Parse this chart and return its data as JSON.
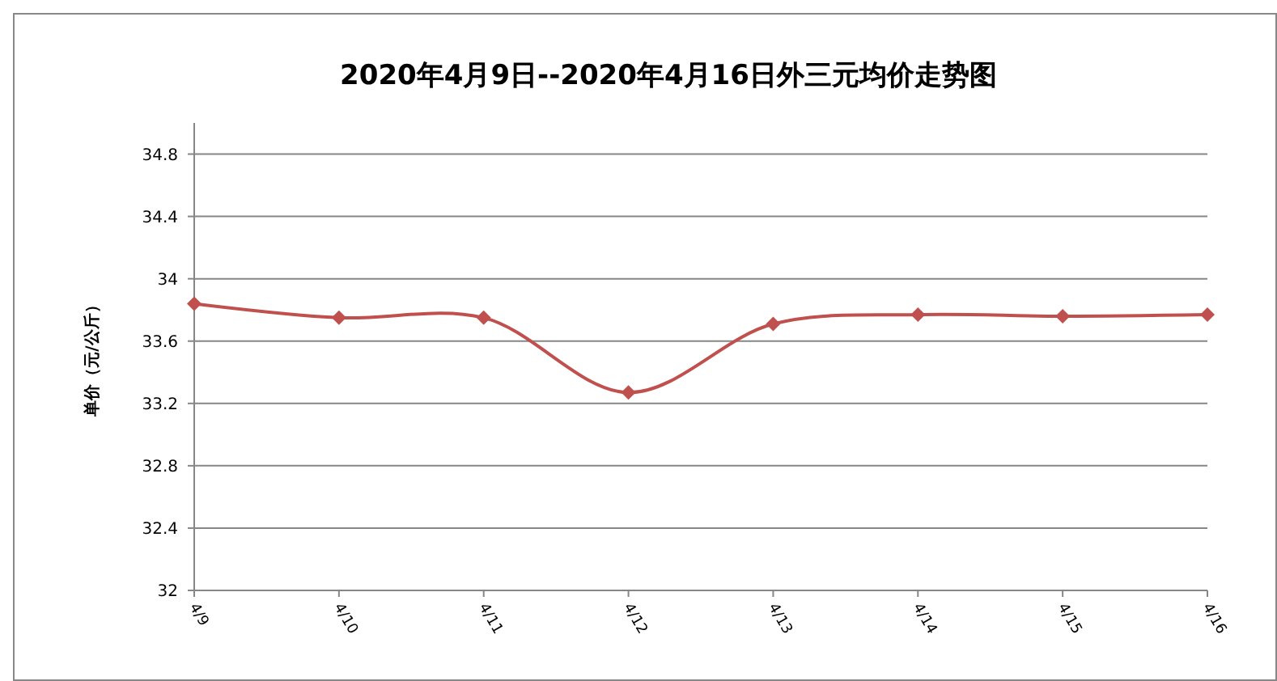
{
  "chart_data": {
    "type": "line",
    "title": "2020年4月9日--2020年4月16日外三元均价走势图",
    "ylabel": "单价（元/公斤）",
    "categories": [
      "4/9",
      "4/10",
      "4/11",
      "4/12",
      "4/13",
      "4/14",
      "4/15",
      "4/16"
    ],
    "series": [
      {
        "color": "#c0504d",
        "values": [
          33.84,
          33.75,
          33.75,
          33.27,
          33.71,
          33.77,
          33.76,
          33.77
        ]
      }
    ],
    "ylim": [
      32,
      35
    ],
    "yticks": [
      32,
      32.4,
      32.8,
      33.2,
      33.6,
      34,
      34.4,
      34.8
    ],
    "grid": "y",
    "marker": "diamond"
  }
}
